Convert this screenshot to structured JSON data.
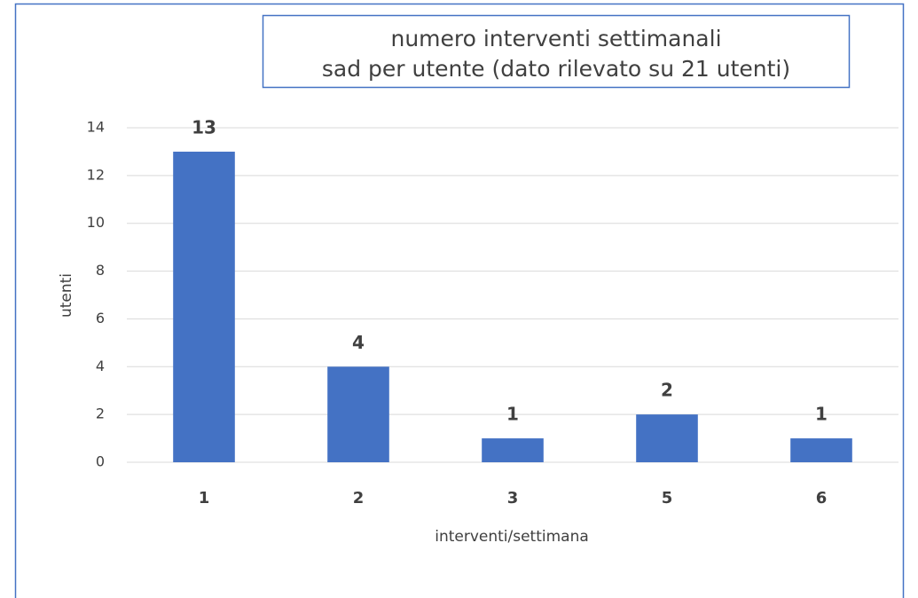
{
  "chart_data": {
    "type": "bar",
    "title": [
      "numero interventi settimanali",
      "sad per  utente (dato rilevato su 21 utenti)"
    ],
    "categories": [
      "1",
      "2",
      "3",
      "5",
      "6"
    ],
    "values": [
      13,
      4,
      1,
      2,
      1
    ],
    "color": "#4472c4",
    "xlabel": "interventi/settimana",
    "ylabel": "utenti",
    "ylim": [
      0,
      14
    ],
    "yticks": [
      0,
      2,
      4,
      6,
      8,
      10,
      12,
      14
    ],
    "grid": true
  }
}
